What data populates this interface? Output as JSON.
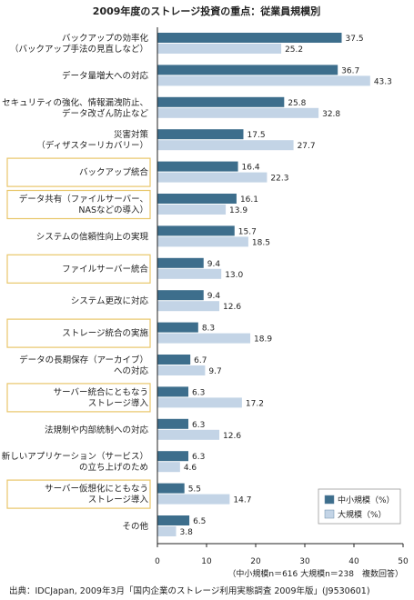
{
  "chart_data": {
    "type": "bar",
    "orientation": "horizontal",
    "title": "2009年度のストレージ投資の重点：従業員規模別",
    "categories": [
      [
        "バックアップの効率化",
        "（バックアップ手法の見直しなど）"
      ],
      [
        "データ量増大への対応"
      ],
      [
        "セキュリティの強化、情報漏洩防止、",
        "データ改ざん防止など"
      ],
      [
        "災害対策",
        "（ディザスターリカバリー）"
      ],
      [
        "バックアップ統合"
      ],
      [
        "データ共有（ファイルサーバー、",
        "NASなどの導入）"
      ],
      [
        "システムの信頼性向上の実現"
      ],
      [
        "ファイルサーバー統合"
      ],
      [
        "システム更改に対応"
      ],
      [
        "ストレージ統合の実施"
      ],
      [
        "データの長期保存（アーカイブ）",
        "への対応"
      ],
      [
        "サーバー統合にともなう",
        "ストレージ導入"
      ],
      [
        "法規制や内部統制への対応"
      ],
      [
        "新しいアプリケーション（サービス）",
        "の立ち上げのため"
      ],
      [
        "サーバー仮想化にともなう",
        "ストレージ導入"
      ],
      [
        "その他"
      ]
    ],
    "highlighted": [
      false,
      false,
      false,
      false,
      true,
      true,
      false,
      true,
      false,
      true,
      false,
      true,
      false,
      false,
      true,
      false
    ],
    "series": [
      {
        "name": "中小規模（%）",
        "color": "#3d6e8c",
        "values": [
          37.5,
          36.7,
          25.8,
          17.5,
          16.4,
          16.1,
          15.7,
          9.4,
          9.4,
          8.3,
          6.7,
          6.3,
          6.3,
          6.3,
          5.5,
          6.5
        ]
      },
      {
        "name": "大規模（%）",
        "color": "#c3d4e6",
        "values": [
          25.2,
          43.3,
          32.8,
          27.7,
          22.3,
          13.9,
          18.5,
          13.0,
          12.6,
          18.9,
          9.7,
          17.2,
          12.6,
          4.6,
          14.7,
          3.8
        ]
      }
    ],
    "value_labels": [
      [
        "37.5",
        "25.2"
      ],
      [
        "36.7",
        "43.3"
      ],
      [
        "25.8",
        "32.8"
      ],
      [
        "17.5",
        "27.7"
      ],
      [
        "16.4",
        "22.3"
      ],
      [
        "16.1",
        "13.9"
      ],
      [
        "15.7",
        "18.5"
      ],
      [
        "9.4",
        "13.0"
      ],
      [
        "9.4",
        "12.6"
      ],
      [
        "8.3",
        "18.9"
      ],
      [
        "6.7",
        "9.7"
      ],
      [
        "6.3",
        "17.2"
      ],
      [
        "6.3",
        "12.6"
      ],
      [
        "6.3",
        "4.6"
      ],
      [
        "5.5",
        "14.7"
      ],
      [
        "6.5",
        "3.8"
      ]
    ],
    "xlim": [
      0,
      50
    ],
    "xticks": [
      0,
      10,
      20,
      30,
      40,
      50
    ],
    "legend_position": "bottom-right",
    "highlight_border_color": "#e8c66a",
    "note": "（中小規模n＝616 大規模n＝238　複数回答）",
    "source": "出典：IDCJapan, 2009年3月「国内企業のストレージ利用実態調査 2009年版」(J9530601)"
  }
}
